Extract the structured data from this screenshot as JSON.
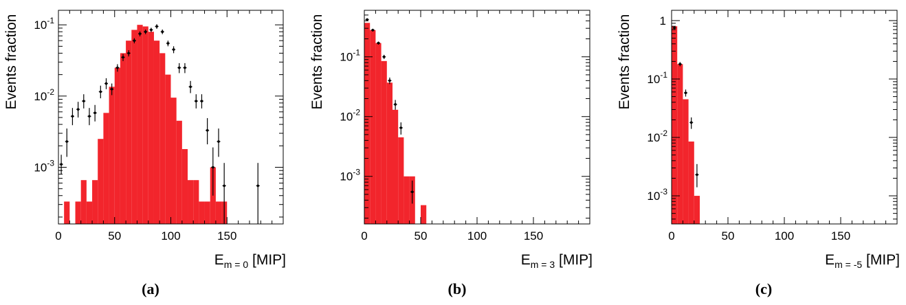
{
  "chart_data": [
    {
      "type": "bar",
      "panel_label": "(a)",
      "ylabel": "Events fraction",
      "xlabel_main": "E",
      "xlabel_sub": "m = 0",
      "xlabel_unit": " [MIP]",
      "xlim": [
        0,
        200
      ],
      "ylim": [
        0.00016,
        0.16
      ],
      "yscale": "log",
      "xticks": [
        0,
        50,
        100,
        150
      ],
      "yticks": [
        {
          "v": 0.1,
          "base": "10",
          "exp": "-1"
        },
        {
          "v": 0.01,
          "base": "10",
          "exp": "-2"
        },
        {
          "v": 0.001,
          "base": "10",
          "exp": "-3"
        }
      ],
      "bin_width": 5,
      "series": [
        {
          "kind": "histogram",
          "x": [
            0,
            5,
            10,
            15,
            20,
            25,
            30,
            35,
            40,
            45,
            50,
            55,
            60,
            65,
            70,
            75,
            80,
            85,
            90,
            95,
            100,
            105,
            110,
            115,
            120,
            125,
            130,
            135,
            140,
            145
          ],
          "values": [
            0,
            0.00033,
            0,
            0.00033,
            0.00066,
            0.00033,
            0.00066,
            0.0025,
            0.0058,
            0.0135,
            0.025,
            0.04,
            0.06,
            0.085,
            0.1,
            0.095,
            0.08,
            0.06,
            0.04,
            0.02,
            0.0095,
            0.0045,
            0.0018,
            0.00066,
            0.00066,
            0.00033,
            0.00033,
            0.001,
            0.00033,
            0.00033
          ]
        },
        {
          "kind": "points",
          "x": [
            2.5,
            7.5,
            12.5,
            17.5,
            22.5,
            27.5,
            32.5,
            37.5,
            42.5,
            47.5,
            52.5,
            57.5,
            62.5,
            67.5,
            72.5,
            77.5,
            82.5,
            87.5,
            92.5,
            97.5,
            102.5,
            107.5,
            112.5,
            117.5,
            122.5,
            127.5,
            132.5,
            137.5,
            142.5,
            147.5,
            177.5
          ],
          "values": [
            0.0011,
            0.0023,
            0.0052,
            0.0065,
            0.0085,
            0.0052,
            0.0058,
            0.0115,
            0.015,
            0.0125,
            0.025,
            0.035,
            0.04,
            0.06,
            0.075,
            0.08,
            0.085,
            0.095,
            0.08,
            0.055,
            0.045,
            0.025,
            0.025,
            0.0135,
            0.0085,
            0.0085,
            0.0033,
            0.001,
            0.0023,
            0.00055,
            0.00055
          ],
          "err_low": [
            0.0003,
            0.0009,
            0.0013,
            0.0015,
            0.0018,
            0.0013,
            0.0014,
            0.0022,
            0.0025,
            0.0022,
            0.003,
            0.004,
            0.004,
            0.005,
            0.006,
            0.006,
            0.006,
            0.007,
            0.006,
            0.005,
            0.005,
            0.004,
            0.004,
            0.0025,
            0.0018,
            0.0018,
            0.0012,
            0.0006,
            0.0009,
            0.00039,
            0.00039
          ],
          "err_high": [
            0.0004,
            0.0012,
            0.0016,
            0.0018,
            0.0021,
            0.0016,
            0.0017,
            0.0025,
            0.0028,
            0.0025,
            0.003,
            0.004,
            0.004,
            0.005,
            0.006,
            0.006,
            0.006,
            0.007,
            0.006,
            0.005,
            0.005,
            0.004,
            0.004,
            0.0028,
            0.0021,
            0.0021,
            0.0016,
            0.0009,
            0.0012,
            0.0006,
            0.0006
          ]
        }
      ]
    },
    {
      "type": "bar",
      "panel_label": "(b)",
      "ylabel": "Events fraction",
      "xlabel_main": "E",
      "xlabel_sub": "m = 3",
      "xlabel_unit": " [MIP]",
      "xlim": [
        0,
        200
      ],
      "ylim": [
        0.00016,
        0.6
      ],
      "yscale": "log",
      "xticks": [
        0,
        50,
        100,
        150
      ],
      "yticks": [
        {
          "v": 0.1,
          "base": "10",
          "exp": "-1"
        },
        {
          "v": 0.01,
          "base": "10",
          "exp": "-2"
        },
        {
          "v": 0.001,
          "base": "10",
          "exp": "-3"
        }
      ],
      "bin_width": 5,
      "series": [
        {
          "kind": "histogram",
          "x": [
            0,
            5,
            10,
            15,
            20,
            25,
            30,
            35,
            40,
            45,
            50
          ],
          "values": [
            0.37,
            0.28,
            0.17,
            0.085,
            0.037,
            0.013,
            0.0045,
            0.001,
            0.001,
            0,
            0.00033
          ]
        },
        {
          "kind": "points",
          "x": [
            2.5,
            7.5,
            12.5,
            17.5,
            22.5,
            27.5,
            32.5,
            42.5
          ],
          "values": [
            0.42,
            0.28,
            0.17,
            0.1,
            0.04,
            0.016,
            0.0065,
            0.00055
          ],
          "err_low": [
            0.02,
            0.015,
            0.01,
            0.008,
            0.005,
            0.003,
            0.0015,
            0.0002
          ],
          "err_high": [
            0.02,
            0.015,
            0.01,
            0.008,
            0.005,
            0.003,
            0.0015,
            0.0003
          ]
        }
      ]
    },
    {
      "type": "bar",
      "panel_label": "(c)",
      "ylabel": "Events fraction",
      "xlabel_main": "E",
      "xlabel_sub": "m = -5",
      "xlabel_unit": " [MIP]",
      "xlim": [
        0,
        200
      ],
      "ylim": [
        0.00033,
        1.5
      ],
      "yscale": "log",
      "xticks": [
        0,
        50,
        100,
        150
      ],
      "yticks": [
        {
          "v": 1,
          "base": "1",
          "exp": ""
        },
        {
          "v": 0.1,
          "base": "10",
          "exp": "-1"
        },
        {
          "v": 0.01,
          "base": "10",
          "exp": "-2"
        },
        {
          "v": 0.001,
          "base": "10",
          "exp": "-3"
        }
      ],
      "bin_width": 5,
      "series": [
        {
          "kind": "histogram",
          "x": [
            0,
            5,
            10,
            15,
            20
          ],
          "values": [
            0.8,
            0.18,
            0.045,
            0.0085,
            0.001
          ]
        },
        {
          "kind": "points",
          "x": [
            2.5,
            7.5,
            12.5,
            17.5,
            22.5
          ],
          "values": [
            0.75,
            0.18,
            0.058,
            0.018,
            0.0023
          ],
          "err_low": [
            0.03,
            0.015,
            0.008,
            0.004,
            0.0009
          ],
          "err_high": [
            0.03,
            0.015,
            0.008,
            0.004,
            0.0012
          ]
        }
      ]
    }
  ]
}
